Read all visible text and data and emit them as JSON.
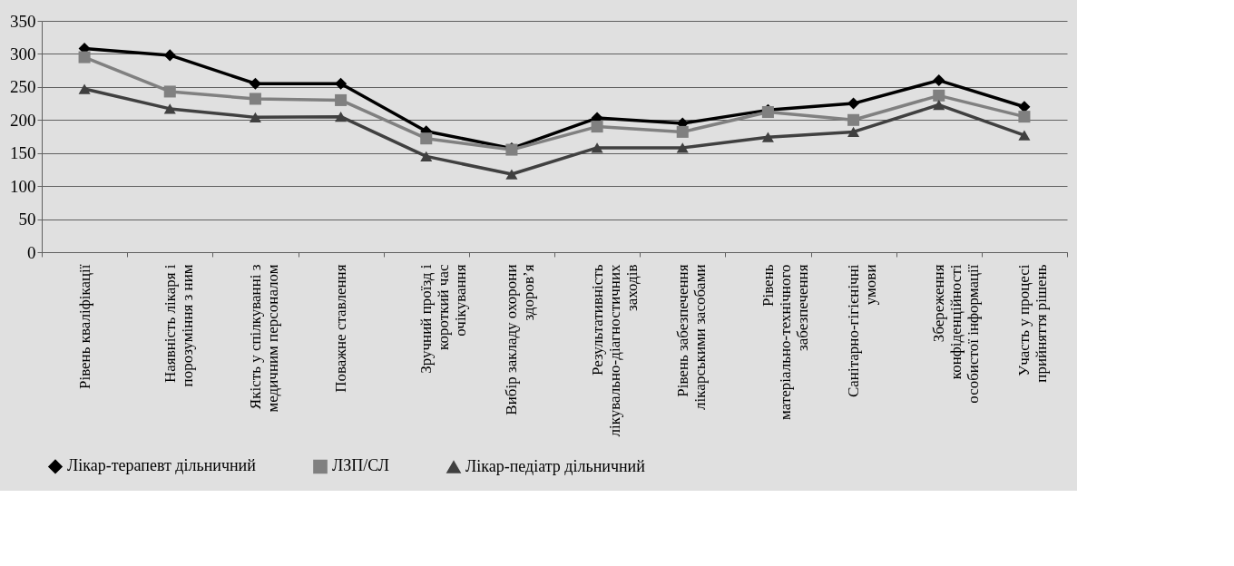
{
  "chart_data": {
    "type": "line",
    "categories": [
      "Рівень кваліфікації",
      "Наявність лікаря і порозуміння з ним",
      "Якість у спілкуванні з медичним персоналом",
      "Поважне ставлення",
      "Зручний проїзд і короткий час очікування",
      "Вибір закладу охорони здоров’я",
      "Результативність лікувально-діагностичних заходів",
      "Рівень забезпечення лікарськими засобами",
      "Рівень матеріально-технічного забезпечення",
      "Санітарно-гігієнічні умови",
      "Збереження конфіденційності особистої інформації",
      "Участь у процесі прийняття рішень"
    ],
    "series": [
      {
        "name": "Лікар-терапевт дільничний",
        "color": "#000000",
        "marker": "diamond",
        "values": [
          308,
          298,
          255,
          255,
          183,
          157,
          203,
          195,
          215,
          225,
          260,
          220
        ]
      },
      {
        "name": "ЛЗП/СЛ",
        "color": "#808080",
        "marker": "square",
        "values": [
          295,
          243,
          232,
          230,
          172,
          155,
          190,
          182,
          212,
          200,
          237,
          205
        ]
      },
      {
        "name": "Лікар-педіатр дільничний",
        "color": "#404040",
        "marker": "triangle",
        "values": [
          247,
          217,
          204,
          205,
          145,
          118,
          158,
          158,
          174,
          182,
          223,
          177
        ]
      }
    ],
    "ylim": [
      0,
      350
    ],
    "yticks": [
      0,
      50,
      100,
      150,
      200,
      250,
      300,
      350
    ],
    "grid": "y",
    "legend": "bottom",
    "line_style": "solid"
  }
}
